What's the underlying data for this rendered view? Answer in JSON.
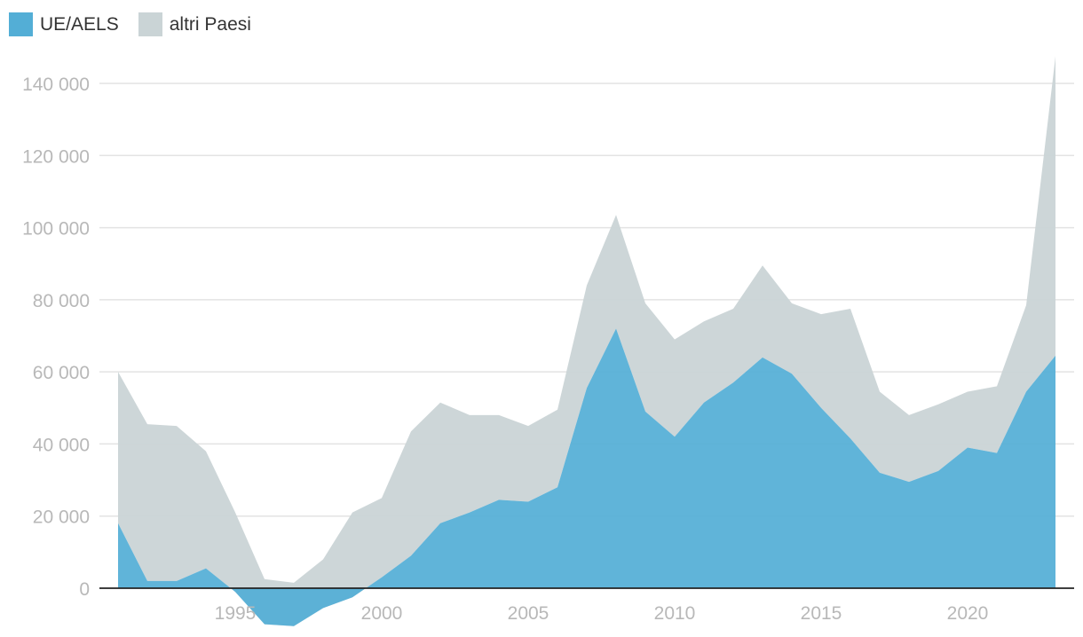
{
  "chart_data": {
    "type": "area",
    "stacked": true,
    "legend_position": "top-left",
    "grid": true,
    "colors": {
      "UE/AELS": "#53aed6",
      "altri Paesi": "#cad4d6",
      "grid": "#e3e3e3",
      "axis": "#222222",
      "ticks": "#b8b8b8"
    },
    "x": [
      1991,
      1992,
      1993,
      1994,
      1995,
      1996,
      1997,
      1998,
      1999,
      2000,
      2001,
      2002,
      2003,
      2004,
      2005,
      2006,
      2007,
      2008,
      2009,
      2010,
      2011,
      2012,
      2013,
      2014,
      2015,
      2016,
      2017,
      2018,
      2019,
      2020,
      2021,
      2022,
      2023
    ],
    "series": [
      {
        "name": "UE/AELS",
        "values": [
          18000,
          2000,
          2000,
          5500,
          -1000,
          -10000,
          -10500,
          -5500,
          -2500,
          3000,
          9000,
          18000,
          21000,
          24500,
          24000,
          28000,
          55500,
          72000,
          49000,
          42000,
          51500,
          57000,
          64000,
          59500,
          50000,
          41500,
          32000,
          29500,
          32500,
          39000,
          37500,
          54500,
          64500
        ]
      },
      {
        "name": "altri Paesi",
        "values": [
          42000,
          43500,
          43000,
          32500,
          22000,
          12500,
          12000,
          13500,
          23500,
          22000,
          34500,
          33500,
          27000,
          23500,
          21000,
          21500,
          28500,
          31500,
          30000,
          27000,
          22500,
          20500,
          25500,
          19500,
          26000,
          36000,
          22500,
          18500,
          18500,
          15500,
          18500,
          24000,
          83000
        ]
      }
    ],
    "x_ticks": [
      "1995",
      "2000",
      "2005",
      "2010",
      "2015",
      "2020"
    ],
    "x_tick_values": [
      1995,
      2000,
      2005,
      2010,
      2015,
      2020
    ],
    "y_ticks": [
      "0",
      "20 000",
      "40 000",
      "60 000",
      "80 000",
      "100 000",
      "120 000",
      "140 000"
    ],
    "y_tick_values": [
      0,
      20000,
      40000,
      60000,
      80000,
      100000,
      120000,
      140000
    ],
    "xlim": [
      1991,
      2023
    ],
    "ylim": [
      -10500,
      148000
    ]
  }
}
